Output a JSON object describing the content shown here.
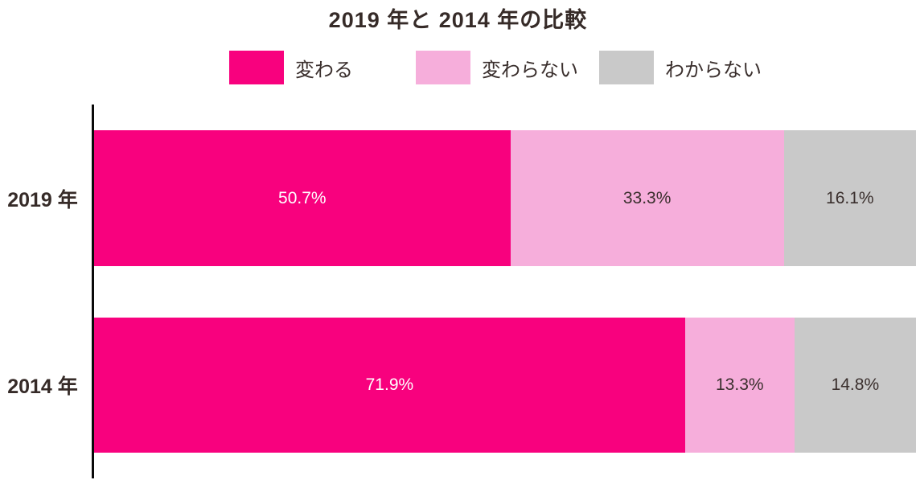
{
  "title": "2019 年と 2014 年の比較",
  "colors": {
    "series_kawaru": "#f8017e",
    "series_kawaranai": "#f6aedb",
    "series_wakaranai": "#c9c9c9",
    "axis": "#0a0a0a",
    "title_text": "#362b28",
    "label_dark": "#3a2f2d",
    "label_light": "#ffffff",
    "background": "#ffffff"
  },
  "chart_data": {
    "type": "bar",
    "stacked": true,
    "orientation": "horizontal",
    "title": "2019 年と 2014 年の比較",
    "categories": [
      "2019 年",
      "2014 年"
    ],
    "series": [
      {
        "name": "変わる",
        "color": "#f8017e",
        "label_color": "#ffffff",
        "values": [
          50.7,
          71.9
        ]
      },
      {
        "name": "変わらない",
        "color": "#f6aedb",
        "label_color": "#3a2f2d",
        "values": [
          33.3,
          13.3
        ]
      },
      {
        "name": "わからない",
        "color": "#c9c9c9",
        "label_color": "#3a2f2d",
        "values": [
          16.1,
          14.8
        ]
      }
    ],
    "value_suffix": "%",
    "xlim": [
      0,
      100
    ],
    "grid": false,
    "legend_position": "top",
    "value_labels": "inside-center"
  }
}
